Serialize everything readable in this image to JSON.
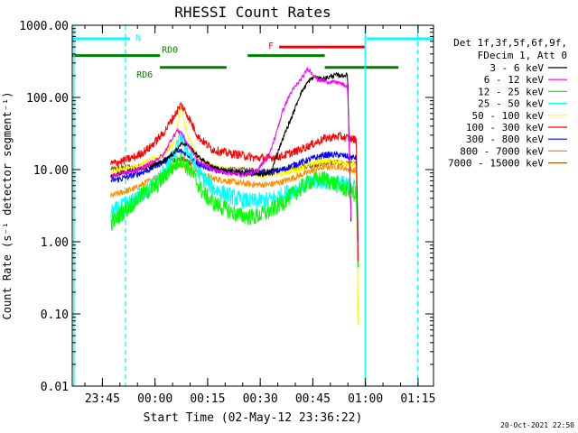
{
  "chart_data": {
    "type": "line",
    "title": "RHESSI Count Rates",
    "xlabel": "Start Time (02-May-12 23:36:22)",
    "ylabel": "Count Rate (s⁻¹ detector segment⁻¹)",
    "yscale": "log",
    "ylim": [
      0.01,
      1000
    ],
    "xlim_minutes_from_start": [
      0,
      103
    ],
    "x_ticks": [
      {
        "label": "23:45",
        "minute": 8.6
      },
      {
        "label": "00:00",
        "minute": 23.6
      },
      {
        "label": "00:15",
        "minute": 38.6
      },
      {
        "label": "00:30",
        "minute": 53.6
      },
      {
        "label": "00:45",
        "minute": 68.6
      },
      {
        "label": "01:00",
        "minute": 83.6
      },
      {
        "label": "01:15",
        "minute": 98.6
      }
    ],
    "y_ticks": [
      "0.01",
      "0.10",
      "1.00",
      "10.00",
      "100.00",
      "1000.00"
    ],
    "y_tick_values": [
      0.01,
      0.1,
      1,
      10,
      100,
      1000
    ],
    "legend_header": [
      "Det 1f,3f,5f,6f,9f,",
      "FDecim 1, Att 0"
    ],
    "legend_placement": "right",
    "series": [
      {
        "name": "3 - 6 keV",
        "color": "#000000",
        "points": [
          [
            11,
            8
          ],
          [
            14,
            9
          ],
          [
            18,
            10
          ],
          [
            22,
            11
          ],
          [
            26,
            13
          ],
          [
            29,
            17
          ],
          [
            31,
            23
          ],
          [
            33,
            22
          ],
          [
            36,
            15
          ],
          [
            40,
            11
          ],
          [
            44,
            9.5
          ],
          [
            48,
            9
          ],
          [
            52,
            9
          ],
          [
            55,
            8.5
          ],
          [
            57,
            10
          ],
          [
            59,
            20
          ],
          [
            61,
            35
          ],
          [
            63,
            60
          ],
          [
            65,
            110
          ],
          [
            67,
            160
          ],
          [
            69,
            195
          ],
          [
            71,
            180
          ],
          [
            73,
            190
          ],
          [
            75,
            205
          ],
          [
            77,
            200
          ],
          [
            78.5,
            205
          ],
          [
            79.5,
            2
          ]
        ]
      },
      {
        "name": "6 - 12 keV",
        "color": "#ff00ff",
        "points": [
          [
            11,
            8
          ],
          [
            14,
            9
          ],
          [
            18,
            9.5
          ],
          [
            22,
            12
          ],
          [
            26,
            16
          ],
          [
            28,
            25
          ],
          [
            30,
            35
          ],
          [
            31,
            33
          ],
          [
            33,
            22
          ],
          [
            36,
            13
          ],
          [
            40,
            10
          ],
          [
            44,
            9
          ],
          [
            48,
            8.5
          ],
          [
            52,
            9
          ],
          [
            54,
            12
          ],
          [
            56,
            15
          ],
          [
            58,
            30
          ],
          [
            60,
            65
          ],
          [
            62,
            110
          ],
          [
            64,
            150
          ],
          [
            66,
            200
          ],
          [
            67,
            250
          ],
          [
            68,
            230
          ],
          [
            70,
            175
          ],
          [
            73,
            165
          ],
          [
            76,
            160
          ],
          [
            78.5,
            140
          ],
          [
            79.5,
            2
          ]
        ]
      },
      {
        "name": "12 - 25 keV",
        "color": "#00ff00",
        "points": [
          [
            11,
            1.8
          ],
          [
            13,
            2.2
          ],
          [
            16,
            3
          ],
          [
            20,
            4.5
          ],
          [
            24,
            6
          ],
          [
            28,
            10
          ],
          [
            31,
            14
          ],
          [
            34,
            9
          ],
          [
            37,
            5
          ],
          [
            40,
            3.5
          ],
          [
            44,
            2.8
          ],
          [
            48,
            2.3
          ],
          [
            52,
            2.2
          ],
          [
            56,
            2.6
          ],
          [
            60,
            3.5
          ],
          [
            64,
            5
          ],
          [
            68,
            7
          ],
          [
            72,
            7.5
          ],
          [
            76,
            6
          ],
          [
            79,
            5
          ],
          [
            81,
            4.5
          ],
          [
            81.5,
            0.5
          ]
        ]
      },
      {
        "name": "25 - 50 keV",
        "color": "#00ffff",
        "points": [
          [
            11,
            2.5
          ],
          [
            14,
            3
          ],
          [
            18,
            3.8
          ],
          [
            22,
            5.5
          ],
          [
            26,
            9
          ],
          [
            29,
            15
          ],
          [
            31,
            30
          ],
          [
            33,
            18
          ],
          [
            36,
            9
          ],
          [
            40,
            5.5
          ],
          [
            44,
            4.5
          ],
          [
            48,
            3.8
          ],
          [
            52,
            3.6
          ],
          [
            56,
            3.8
          ],
          [
            60,
            4.5
          ],
          [
            64,
            5.5
          ],
          [
            68,
            6.5
          ],
          [
            72,
            7
          ],
          [
            76,
            6.5
          ],
          [
            79,
            6
          ],
          [
            81,
            5.5
          ],
          [
            81.5,
            0.5
          ]
        ]
      },
      {
        "name": "50 - 100 keV",
        "color": "#ffff00",
        "points": [
          [
            11,
            9
          ],
          [
            14,
            10
          ],
          [
            18,
            11
          ],
          [
            22,
            13
          ],
          [
            26,
            16
          ],
          [
            29,
            24
          ],
          [
            31,
            75
          ],
          [
            33,
            28
          ],
          [
            36,
            14
          ],
          [
            40,
            11
          ],
          [
            44,
            10
          ],
          [
            48,
            9
          ],
          [
            52,
            8.5
          ],
          [
            56,
            8.5
          ],
          [
            60,
            9
          ],
          [
            64,
            10
          ],
          [
            68,
            12
          ],
          [
            72,
            13.5
          ],
          [
            76,
            13
          ],
          [
            79,
            12
          ],
          [
            81,
            11
          ],
          [
            81.5,
            0.07
          ]
        ]
      },
      {
        "name": "100 - 300 keV",
        "color": "#ff0000",
        "points": [
          [
            11,
            12
          ],
          [
            14,
            13
          ],
          [
            18,
            15
          ],
          [
            22,
            20
          ],
          [
            26,
            32
          ],
          [
            29,
            55
          ],
          [
            31,
            80
          ],
          [
            33,
            55
          ],
          [
            36,
            28
          ],
          [
            40,
            19
          ],
          [
            44,
            17
          ],
          [
            48,
            16
          ],
          [
            52,
            14.5
          ],
          [
            56,
            14.5
          ],
          [
            60,
            15.5
          ],
          [
            64,
            18
          ],
          [
            68,
            22
          ],
          [
            72,
            27
          ],
          [
            76,
            29
          ],
          [
            79,
            27
          ],
          [
            81,
            26
          ],
          [
            81.5,
            0.5
          ]
        ]
      },
      {
        "name": "300 - 800 keV",
        "color": "#0000ff",
        "points": [
          [
            11,
            7
          ],
          [
            14,
            7.5
          ],
          [
            18,
            8.5
          ],
          [
            22,
            10
          ],
          [
            26,
            13
          ],
          [
            29,
            17
          ],
          [
            31,
            18
          ],
          [
            33,
            16
          ],
          [
            36,
            12
          ],
          [
            40,
            10
          ],
          [
            44,
            9.5
          ],
          [
            48,
            9
          ],
          [
            52,
            9
          ],
          [
            56,
            9
          ],
          [
            60,
            10
          ],
          [
            64,
            12
          ],
          [
            68,
            14
          ],
          [
            72,
            16
          ],
          [
            76,
            16
          ],
          [
            79,
            15
          ],
          [
            81,
            14.5
          ],
          [
            81.5,
            1
          ]
        ]
      },
      {
        "name": "800 - 7000 keV",
        "color": "#ff8c00",
        "points": [
          [
            11,
            4.3
          ],
          [
            14,
            4.8
          ],
          [
            18,
            5.5
          ],
          [
            22,
            7
          ],
          [
            26,
            9
          ],
          [
            29,
            11
          ],
          [
            31,
            12
          ],
          [
            33,
            11
          ],
          [
            36,
            9
          ],
          [
            40,
            7.5
          ],
          [
            44,
            7
          ],
          [
            48,
            6.5
          ],
          [
            52,
            6.2
          ],
          [
            56,
            6.2
          ],
          [
            60,
            6.8
          ],
          [
            64,
            8
          ],
          [
            68,
            9.5
          ],
          [
            72,
            11
          ],
          [
            76,
            11
          ],
          [
            79,
            10
          ],
          [
            81,
            9.5
          ],
          [
            81.5,
            0.07
          ]
        ]
      },
      {
        "name": "7000 - 15000 keV",
        "color": "#8b6508",
        "points": [
          [
            11,
            10
          ],
          [
            14,
            10.5
          ],
          [
            18,
            11
          ],
          [
            22,
            11.5
          ],
          [
            26,
            12.5
          ],
          [
            29,
            13.5
          ],
          [
            31,
            14
          ],
          [
            33,
            13
          ],
          [
            36,
            11.5
          ],
          [
            40,
            10.5
          ],
          [
            44,
            10
          ],
          [
            48,
            9.8
          ],
          [
            52,
            9.6
          ],
          [
            56,
            9.5
          ],
          [
            60,
            9.8
          ],
          [
            64,
            10.5
          ],
          [
            68,
            11.5
          ],
          [
            72,
            12.5
          ],
          [
            76,
            12.5
          ],
          [
            79,
            12
          ],
          [
            81,
            11.5
          ],
          [
            81.5,
            0.5
          ]
        ]
      }
    ],
    "flags": [
      {
        "label": "N",
        "color": "#00ffff",
        "ranges": [
          [
            0,
            16.5
          ],
          [
            84,
            103
          ]
        ],
        "level": 650
      },
      {
        "label": "F",
        "color": "#ff0000",
        "ranges": [
          [
            59,
            83.5
          ]
        ],
        "level": 500
      },
      {
        "label": "RD0",
        "color": "#008000",
        "ranges": [
          [
            0,
            25
          ],
          [
            50,
            72
          ]
        ],
        "level": 380
      },
      {
        "label": "RD6",
        "color": "#008000",
        "ranges": [
          [
            25,
            44
          ],
          [
            72,
            93
          ]
        ],
        "level": 260
      }
    ],
    "vertical_markers": [
      {
        "minute": 0.5,
        "color": "#00ffff",
        "style": "solid"
      },
      {
        "minute": 15.2,
        "color": "#00ffff",
        "style": "dashed"
      },
      {
        "minute": 83.5,
        "color": "#00ffff",
        "style": "solid"
      },
      {
        "minute": 98.5,
        "color": "#00ffff",
        "style": "dashed"
      }
    ],
    "grid": false
  },
  "footer": {
    "timestamp": "20-Oct-2021 22:50"
  }
}
